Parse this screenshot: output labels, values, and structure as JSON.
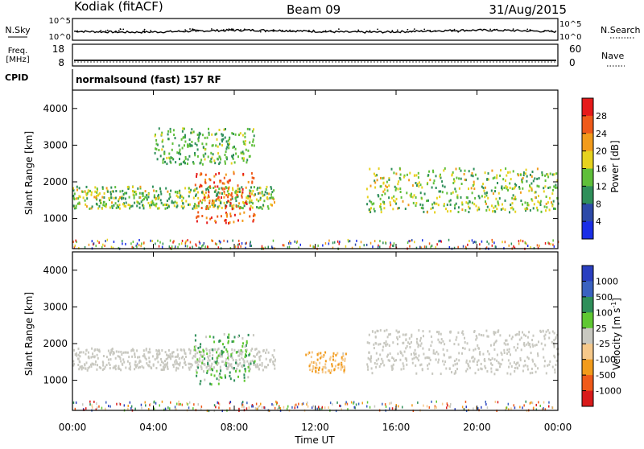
{
  "header": {
    "station": "Kodiak (fitACF)",
    "beam": "Beam 09",
    "date": "31/Aug/2015"
  },
  "noise_panel": {
    "left_label": "N.Sky",
    "right_label": "N.Search",
    "left_ticks": [
      "10^5",
      "10^0"
    ],
    "right_ticks": [
      "10^5",
      "10^0"
    ]
  },
  "freq_panel": {
    "left_label": "Freq.",
    "left_unit": "[MHz]",
    "right_label": "Nave",
    "left_ticks": [
      "18",
      "8"
    ],
    "right_ticks": [
      "60",
      "0"
    ]
  },
  "cpid": {
    "label": "CPID",
    "value": "normalsound (fast) 157 RF"
  },
  "x_axis": {
    "label": "Time UT",
    "ticks": [
      "00:00",
      "04:00",
      "08:00",
      "12:00",
      "16:00",
      "20:00",
      "00:00"
    ]
  },
  "colors": {
    "power": [
      "#1a2ee6",
      "#2d4aa8",
      "#2f8f5a",
      "#5fbf3a",
      "#e6d21e",
      "#f29b1b",
      "#ef5a1a",
      "#e61a1a"
    ],
    "velocity": [
      "#d91a1a",
      "#ef5a1a",
      "#f29b1b",
      "#f5c88a",
      "#c8c8c0",
      "#5fc832",
      "#2f8f5a",
      "#3a62c0",
      "#2a3fc0"
    ],
    "noise_trace": "#000000"
  },
  "chart_data": [
    {
      "type": "heatmap",
      "title": "",
      "xlabel": "Time UT",
      "ylabel": "Slant Range [km]",
      "xlim": [
        "00:00",
        "24:00"
      ],
      "ylim": [
        180,
        4500
      ],
      "y_ticks": [
        "1000",
        "2000",
        "3000",
        "4000"
      ],
      "colorbar": {
        "label": "Power [dB]",
        "ticks": [
          "28",
          "24",
          "20",
          "16",
          "12",
          "8",
          "4"
        ],
        "range": [
          0,
          30
        ]
      },
      "features": [
        {
          "band": "main F-region echo band",
          "time_range": [
            "00:00",
            "10:00"
          ],
          "slant_range_km": [
            1300,
            1900
          ],
          "power_db": [
            8,
            20
          ]
        },
        {
          "band": "strong echo patch",
          "time_range": [
            "06:00",
            "09:00"
          ],
          "slant_range_km": [
            900,
            2300
          ],
          "power_db": [
            20,
            28
          ]
        },
        {
          "band": "scattered echoes",
          "time_range": [
            "04:00",
            "09:00"
          ],
          "slant_range_km": [
            2500,
            3500
          ],
          "power_db": [
            8,
            16
          ]
        },
        {
          "band": "main echo band (afternoon)",
          "time_range": [
            "14:30",
            "24:00"
          ],
          "slant_range_km": [
            1200,
            2400
          ],
          "power_db": [
            8,
            20
          ]
        }
      ]
    },
    {
      "type": "heatmap",
      "title": "",
      "xlabel": "Time UT",
      "ylabel": "Slant Range [km]",
      "xlim": [
        "00:00",
        "24:00"
      ],
      "ylim": [
        180,
        4500
      ],
      "y_ticks": [
        "1000",
        "2000",
        "3000",
        "4000"
      ],
      "colorbar": {
        "label": "Velocity [m s^-1]",
        "ticks": [
          "1000",
          "500",
          "100",
          "25",
          "-25",
          "-100",
          "-500",
          "-1000"
        ],
        "range": [
          -1000,
          1000
        ]
      },
      "features": [
        {
          "band": "ground scatter band",
          "time_range": [
            "00:00",
            "10:00"
          ],
          "slant_range_km": [
            1300,
            1900
          ],
          "velocity_ms": [
            -25,
            25
          ]
        },
        {
          "band": "positive velocity echoes",
          "time_range": [
            "06:00",
            "09:00"
          ],
          "slant_range_km": [
            900,
            2300
          ],
          "velocity_ms": [
            25,
            500
          ]
        },
        {
          "band": "negative velocity echoes",
          "time_range": [
            "11:30",
            "13:30"
          ],
          "slant_range_km": [
            1200,
            1800
          ],
          "velocity_ms": [
            -500,
            -100
          ]
        },
        {
          "band": "ground scatter band (afternoon)",
          "time_range": [
            "14:30",
            "24:00"
          ],
          "slant_range_km": [
            1200,
            2400
          ],
          "velocity_ms": [
            -25,
            25
          ]
        }
      ]
    }
  ]
}
